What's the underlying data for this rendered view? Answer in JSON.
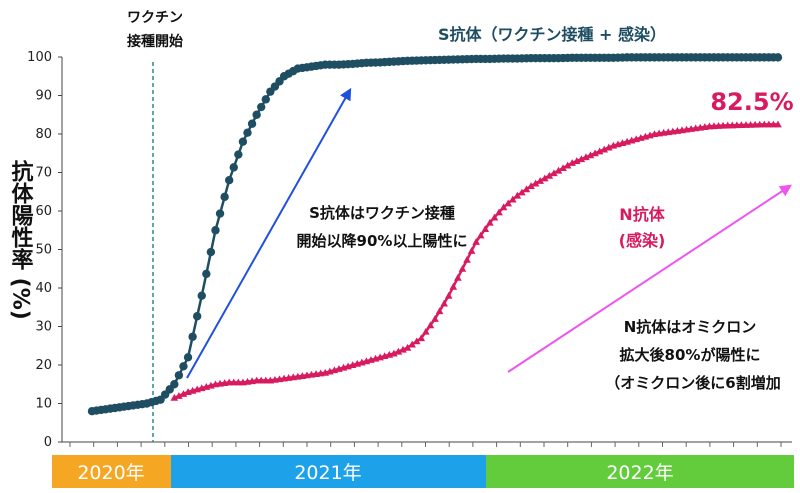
{
  "chart_data": {
    "type": "line",
    "ylabel": "抗体陽性率 (%)",
    "ylim": [
      0,
      100
    ],
    "yticks": [
      0,
      10,
      20,
      30,
      40,
      50,
      60,
      70,
      80,
      90,
      100
    ],
    "grid": false,
    "years": [
      {
        "label": "2020年",
        "color": "#f5a623"
      },
      {
        "label": "2021年",
        "color": "#1da1e8"
      },
      {
        "label": "2022年",
        "color": "#62cc3c"
      }
    ],
    "vaccine_line": {
      "label_line1": "ワクチン",
      "label_line2": "接種開始"
    },
    "series": [
      {
        "name": "S抗体（ワクチン接種 + 感染）",
        "color": "#1f4e63",
        "marker": "circle",
        "x": [
          0,
          2,
          4,
          6,
          8,
          10,
          12,
          14,
          16,
          18,
          20,
          22,
          24,
          26,
          28,
          30,
          32,
          34,
          36,
          38,
          40,
          42,
          44,
          46,
          48,
          50,
          52,
          54,
          56,
          58,
          60,
          62,
          64,
          66,
          68,
          70,
          72,
          74,
          76,
          78,
          80,
          82,
          84,
          86,
          88,
          90,
          92,
          94,
          96,
          98,
          100
        ],
        "values": [
          8,
          8.5,
          9,
          9.5,
          10,
          11,
          15,
          22,
          38,
          55,
          68,
          78,
          85,
          91,
          95,
          97,
          97.5,
          98,
          98,
          98.2,
          98.5,
          98.6,
          98.8,
          99,
          99.1,
          99.2,
          99.3,
          99.4,
          99.5,
          99.5,
          99.6,
          99.6,
          99.7,
          99.7,
          99.7,
          99.8,
          99.8,
          99.8,
          99.8,
          99.9,
          99.9,
          99.9,
          99.9,
          99.9,
          99.9,
          99.9,
          99.9,
          99.9,
          99.9,
          99.9,
          99.9
        ]
      },
      {
        "name": "N抗体（感染）",
        "name_line1": "N抗体",
        "name_line2": "(感染)",
        "color": "#d81b60",
        "marker": "triangle",
        "x": [
          12,
          14,
          16,
          18,
          20,
          22,
          24,
          26,
          28,
          30,
          32,
          34,
          36,
          38,
          40,
          42,
          44,
          46,
          48,
          50,
          52,
          54,
          56,
          58,
          60,
          62,
          64,
          66,
          68,
          70,
          72,
          74,
          76,
          78,
          80,
          82,
          84,
          86,
          88,
          90,
          92,
          94,
          96,
          98,
          100
        ],
        "values": [
          11.5,
          13,
          14,
          15,
          15.5,
          15.5,
          16,
          16,
          16.5,
          17,
          17.5,
          18,
          19,
          20,
          21,
          22,
          23,
          24.5,
          27,
          32,
          38,
          45,
          52,
          57,
          61,
          64,
          66.5,
          68.5,
          70.5,
          72.5,
          74,
          75.5,
          77,
          78,
          79,
          80,
          80.5,
          81,
          81.5,
          82,
          82.2,
          82.3,
          82.4,
          82.5,
          82.5
        ]
      }
    ],
    "annotations": {
      "final_value": "82.5%",
      "s_note_line1": "S抗体はワクチン接種",
      "s_note_line2": "開始以降90%以上陽性に",
      "n_note_line1": "N抗体はオミクロン",
      "n_note_line2": "拡大後80%が陽性に",
      "n_note_line3": "（オミクロン後に6割増加"
    }
  }
}
